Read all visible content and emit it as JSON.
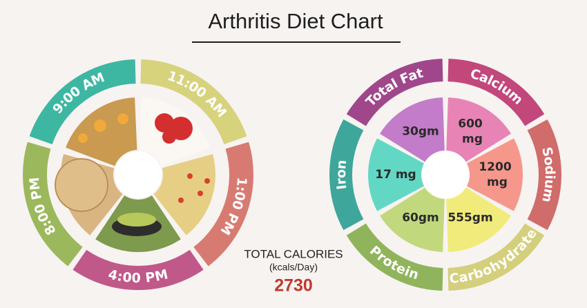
{
  "header": {
    "title": "Arthritis Diet Chart"
  },
  "meals": [
    {
      "time": "9:00 AM"
    },
    {
      "time": "11:00 AM"
    },
    {
      "time": "1:00 PM"
    },
    {
      "time": "4:00 PM"
    },
    {
      "time": "8:00 PM"
    }
  ],
  "nutrients": [
    {
      "name": "Total Fat",
      "amount": "30gm"
    },
    {
      "name": "Calcium",
      "amount": "600 mg"
    },
    {
      "name": "Sodium",
      "amount": "1200 mg"
    },
    {
      "name": "Carbohydrate",
      "amount": "555gm"
    },
    {
      "name": "Protein",
      "amount": "60gm"
    },
    {
      "name": "Iron",
      "amount": "17 mg"
    }
  ],
  "total_calories": {
    "label": "TOTAL CALORIES",
    "unit": "(kcals/Day)",
    "value": 2730
  }
}
